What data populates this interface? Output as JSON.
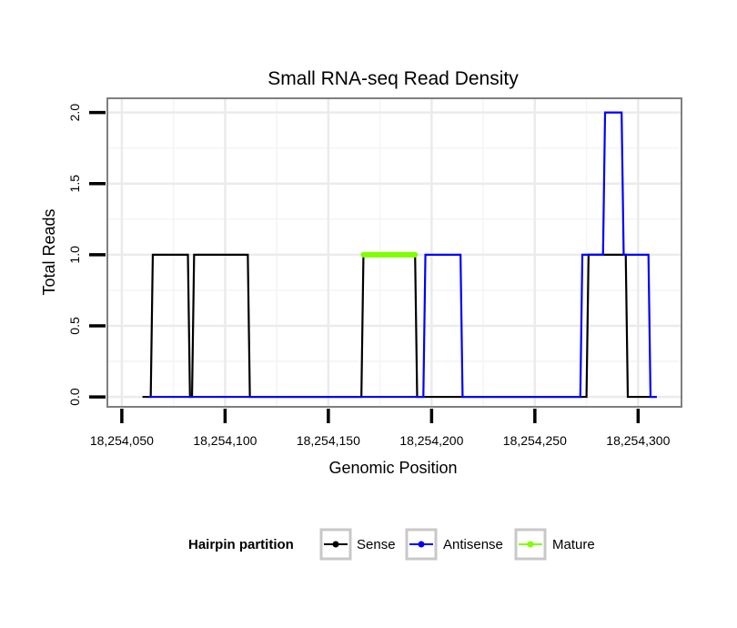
{
  "chart_data": {
    "type": "line",
    "title": "Small RNA-seq Read Density",
    "xlabel": "Genomic Position",
    "ylabel": "Total Reads",
    "xlim": [
      18254043,
      18254321
    ],
    "ylim": [
      -0.07,
      2.1
    ],
    "x_ticks": [
      {
        "value": 18254050,
        "label": "18,254,050"
      },
      {
        "value": 18254100,
        "label": "18,254,100"
      },
      {
        "value": 18254150,
        "label": "18,254,150"
      },
      {
        "value": 18254200,
        "label": "18,254,200"
      },
      {
        "value": 18254250,
        "label": "18,254,250"
      },
      {
        "value": 18254300,
        "label": "18,254,300"
      }
    ],
    "y_ticks": [
      {
        "value": 0.0,
        "label": "0.0"
      },
      {
        "value": 0.5,
        "label": "0.5"
      },
      {
        "value": 1.0,
        "label": "1.0"
      },
      {
        "value": 1.5,
        "label": "1.5"
      },
      {
        "value": 2.0,
        "label": "2.0"
      }
    ],
    "grid": true,
    "legend": {
      "title": "Hairpin partition",
      "position": "bottom",
      "entries": [
        "Sense",
        "Antisense",
        "Mature"
      ]
    },
    "series": [
      {
        "name": "Sense",
        "color": "#000000",
        "x": [
          18254060,
          18254064,
          18254065,
          18254082,
          18254083,
          18254084,
          18254085,
          18254111,
          18254112,
          18254166,
          18254167,
          18254192,
          18254193,
          18254275,
          18254276,
          18254294,
          18254295,
          18254309
        ],
        "y": [
          0,
          0,
          1,
          1,
          0,
          0,
          1,
          1,
          0,
          0,
          1,
          1,
          0,
          0,
          1,
          1,
          0,
          0
        ]
      },
      {
        "name": "Antisense",
        "color": "#0000ff",
        "x": [
          18254063,
          18254112,
          18254196,
          18254197,
          18254214,
          18254215,
          18254272,
          18254273,
          18254283,
          18254284,
          18254292,
          18254293,
          18254305,
          18254306,
          18254309
        ],
        "y": [
          0,
          0,
          0,
          1,
          1,
          0,
          0,
          1,
          1,
          2,
          2,
          1,
          1,
          0,
          0
        ]
      },
      {
        "name": "Mature",
        "color": "#7fff00",
        "x": [
          18254167,
          18254192
        ],
        "y": [
          1,
          1
        ]
      }
    ]
  }
}
